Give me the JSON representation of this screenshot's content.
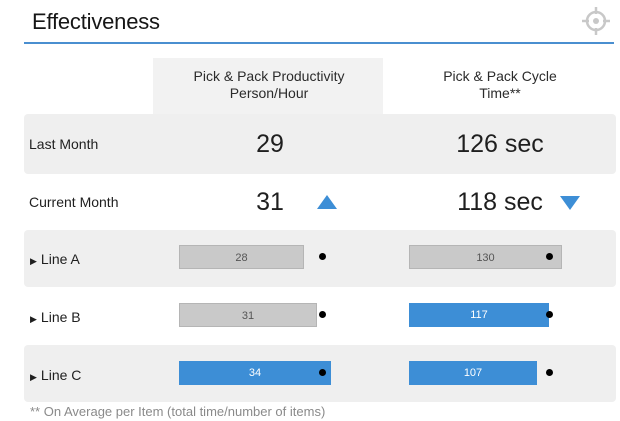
{
  "widget": {
    "title": "Effectiveness",
    "settings_icon": "crosshair-gear-icon",
    "accent_color": "#3d8ed6",
    "gray_color": "#c9c9c9"
  },
  "columns": [
    {
      "header_line1": "Pick & Pack Productivity",
      "header_line2": "Person/Hour"
    },
    {
      "header_line1": "Pick & Pack Cycle",
      "header_line2": "Time**"
    }
  ],
  "summary_rows": [
    {
      "label": "Last Month",
      "productivity": "29",
      "cycle_time": "126 sec"
    },
    {
      "label": "Current Month",
      "productivity": "31",
      "productivity_trend": "up",
      "cycle_time": "118 sec",
      "cycle_time_trend": "down"
    }
  ],
  "lines": [
    {
      "label": "Line A",
      "productivity": {
        "value": "28",
        "status": "below-target"
      },
      "cycle_time": {
        "value": "130",
        "status": "below-target"
      }
    },
    {
      "label": "Line B",
      "productivity": {
        "value": "31",
        "status": "below-target"
      },
      "cycle_time": {
        "value": "117",
        "status": "on-target"
      }
    },
    {
      "label": "Line C",
      "productivity": {
        "value": "34",
        "status": "on-target"
      },
      "cycle_time": {
        "value": "107",
        "status": "on-target"
      }
    }
  ],
  "footnote": "** On Average per Item (total time/number of items)"
}
